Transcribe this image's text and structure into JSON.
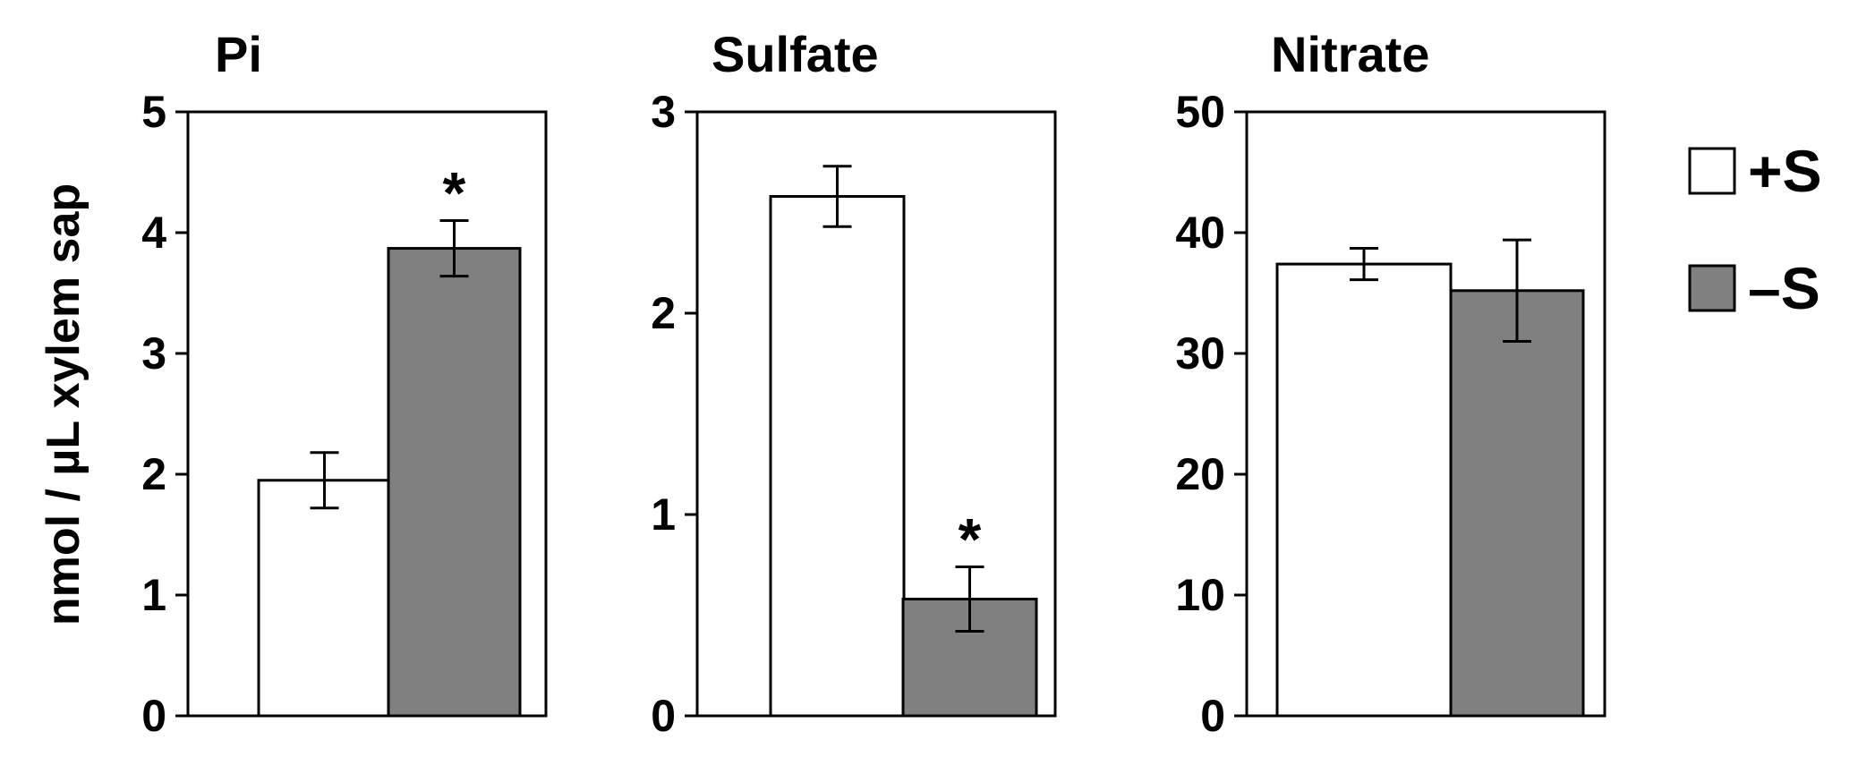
{
  "chart_data": [
    {
      "type": "bar",
      "title": "Pi",
      "ylabel": "nmol / µL xylem sap",
      "ylim": [
        0,
        5
      ],
      "yticks": [
        "0",
        "1",
        "2",
        "3",
        "4",
        "5"
      ],
      "series": [
        {
          "name": "+S",
          "value": 1.95,
          "error": 0.23,
          "color": "#ffffff",
          "significance": ""
        },
        {
          "name": "–S",
          "value": 3.87,
          "error": 0.23,
          "color": "#808080",
          "significance": "*"
        }
      ]
    },
    {
      "type": "bar",
      "title": "Sulfate",
      "ylabel": "",
      "ylim": [
        0,
        3
      ],
      "yticks": [
        "0",
        "1",
        "2",
        "3"
      ],
      "series": [
        {
          "name": "+S",
          "value": 2.58,
          "error": 0.15,
          "color": "#ffffff",
          "significance": ""
        },
        {
          "name": "–S",
          "value": 0.58,
          "error": 0.16,
          "color": "#808080",
          "significance": "*"
        }
      ]
    },
    {
      "type": "bar",
      "title": "Nitrate",
      "ylabel": "",
      "ylim": [
        0,
        50
      ],
      "yticks": [
        "0",
        "10",
        "20",
        "30",
        "40",
        "50"
      ],
      "series": [
        {
          "name": "+S",
          "value": 37.4,
          "error": 1.3,
          "color": "#ffffff",
          "significance": ""
        },
        {
          "name": "–S",
          "value": 35.2,
          "error": 4.2,
          "color": "#808080",
          "significance": ""
        }
      ]
    }
  ],
  "legend": {
    "position": "right",
    "items": [
      {
        "label": "+S",
        "color": "#ffffff"
      },
      {
        "label": "–S",
        "color": "#808080"
      }
    ]
  },
  "grid": false
}
